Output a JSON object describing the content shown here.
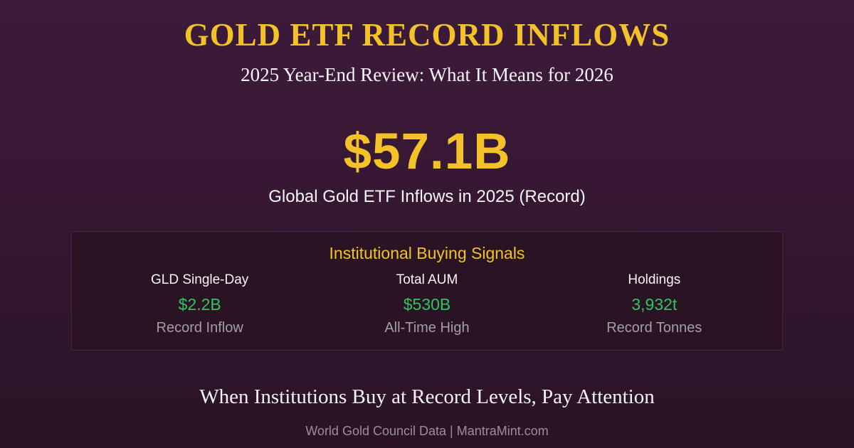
{
  "header": {
    "title": "GOLD ETF RECORD INFLOWS",
    "subtitle": "2025 Year-End Review: What It Means for 2026"
  },
  "hero": {
    "value": "$57.1B",
    "caption": "Global Gold ETF Inflows in 2025 (Record)"
  },
  "signals_panel": {
    "title": "Institutional Buying Signals",
    "items": [
      {
        "label": "GLD Single-Day",
        "value": "$2.2B",
        "note": "Record Inflow"
      },
      {
        "label": "Total AUM",
        "value": "$530B",
        "note": "All-Time High"
      },
      {
        "label": "Holdings",
        "value": "3,932t",
        "note": "Record Tonnes"
      }
    ]
  },
  "footer": {
    "tagline": "When Institutions Buy at Record Levels, Pay Attention",
    "source": "World Gold Council Data | MantraMint.com"
  },
  "colors": {
    "bg_top": "#3c1b3a",
    "bg_bottom": "#2a1326",
    "panel_bg": "#2a1423",
    "panel_border": "#4a2342",
    "gold": "#f2c228",
    "green": "#2ec464",
    "white": "#f7f4f7",
    "gray": "#a39ea6",
    "source_gray": "#97909b"
  }
}
